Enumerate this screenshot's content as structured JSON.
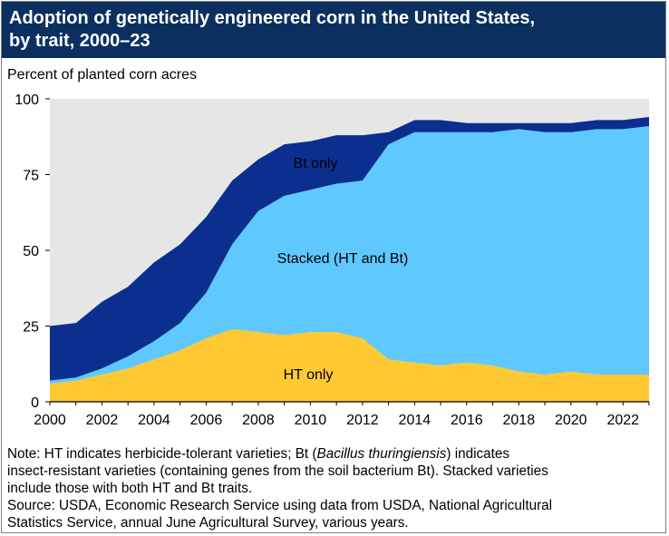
{
  "title_line1": "Adoption of genetically engineered corn in the United States,",
  "title_line2": "by trait, 2000–23",
  "colors": {
    "title_bg": "#0b3060",
    "ht_only": "#ffc933",
    "stacked": "#5ec8ff",
    "bt_only": "#0a2f8e",
    "plot_bg": "#e6e6e6"
  },
  "note": {
    "line1_pre": "Note: HT indicates herbicide-tolerant varieties; Bt (",
    "line1_italic": "Bacillus thuringiensis",
    "line1_post": ") indicates",
    "line2": "insect-resistant varieties (containing genes from the soil bacterium Bt). Stacked varieties",
    "line3": "include those with both HT and Bt traits.",
    "line4": "Source: USDA, Economic Research Service using data from USDA, National Agricultural",
    "line5": "Statistics Service, annual June Agricultural Survey, various years."
  },
  "chart_data": {
    "type": "area",
    "stacked": true,
    "ylabel": "Percent of planted corn acres",
    "xlim": [
      2000,
      2023
    ],
    "ylim": [
      0,
      100
    ],
    "x_ticks": [
      2000,
      2002,
      2004,
      2006,
      2008,
      2010,
      2012,
      2014,
      2016,
      2018,
      2020,
      2022
    ],
    "y_ticks": [
      0,
      25,
      50,
      75,
      100
    ],
    "grid": false,
    "x": [
      2000,
      2001,
      2002,
      2003,
      2004,
      2005,
      2006,
      2007,
      2008,
      2009,
      2010,
      2011,
      2012,
      2013,
      2014,
      2015,
      2016,
      2017,
      2018,
      2019,
      2020,
      2021,
      2022,
      2023
    ],
    "series": [
      {
        "name": "HT only",
        "color": "#ffc933",
        "values": [
          6,
          7,
          9,
          11,
          14,
          17,
          21,
          24,
          23,
          22,
          23,
          23,
          21,
          14,
          13,
          12,
          13,
          12,
          10,
          9,
          10,
          9,
          9,
          9
        ]
      },
      {
        "name": "Stacked (HT and Bt)",
        "color": "#5ec8ff",
        "values": [
          1,
          1,
          2,
          4,
          6,
          9,
          15,
          28,
          40,
          46,
          47,
          49,
          52,
          71,
          76,
          77,
          76,
          77,
          80,
          80,
          79,
          81,
          81,
          82
        ]
      },
      {
        "name": "Bt only",
        "color": "#0a2f8e",
        "values": [
          18,
          18,
          22,
          23,
          26,
          26,
          25,
          21,
          17,
          17,
          16,
          16,
          15,
          4,
          4,
          4,
          3,
          3,
          2,
          3,
          3,
          3,
          3,
          3
        ]
      }
    ]
  }
}
